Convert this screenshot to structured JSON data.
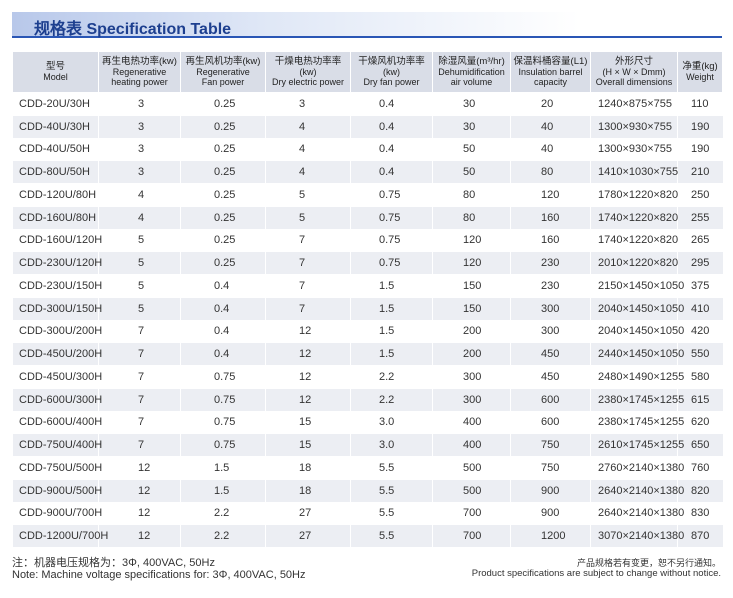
{
  "header": {
    "title": "规格表 Specification Table"
  },
  "table": {
    "columns": [
      [
        "型号",
        "Model"
      ],
      [
        "再生电热功率(kw)",
        "Regenerative",
        "heating power"
      ],
      [
        "再生风机功率(kw)",
        "Regenerative",
        "Fan power"
      ],
      [
        "干燥电热功率率",
        "(kw)",
        "Dry electric power"
      ],
      [
        "干燥风机功率率",
        "(kw)",
        "Dry fan power"
      ],
      [
        "除湿风量(m³/hr)",
        "Dehumidification",
        "air volume"
      ],
      [
        "保温料桶容量(L1)",
        "Insulation barrel",
        "capacity"
      ],
      [
        "外形尺寸",
        "(H × W × Dmm)",
        "Overall dimensions"
      ],
      [
        "净重(kg)",
        "Weight"
      ]
    ],
    "rows": [
      [
        "CDD-20U/30H",
        "3",
        "0.25",
        "3",
        "0.4",
        "30",
        "20",
        "1240×875×755",
        "110"
      ],
      [
        "CDD-40U/30H",
        "3",
        "0.25",
        "4",
        "0.4",
        "30",
        "40",
        "1300×930×755",
        "190"
      ],
      [
        "CDD-40U/50H",
        "3",
        "0.25",
        "4",
        "0.4",
        "50",
        "40",
        "1300×930×755",
        "190"
      ],
      [
        "CDD-80U/50H",
        "3",
        "0.25",
        "4",
        "0.4",
        "50",
        "80",
        "1410×1030×755",
        "210"
      ],
      [
        "CDD-120U/80H",
        "4",
        "0.25",
        "5",
        "0.75",
        "80",
        "120",
        "1780×1220×820",
        "250"
      ],
      [
        "CDD-160U/80H",
        "4",
        "0.25",
        "5",
        "0.75",
        "80",
        "160",
        "1740×1220×820",
        "255"
      ],
      [
        "CDD-160U/120H",
        "5",
        "0.25",
        "7",
        "0.75",
        "120",
        "160",
        "1740×1220×820",
        "265"
      ],
      [
        "CDD-230U/120H",
        "5",
        "0.25",
        "7",
        "0.75",
        "120",
        "230",
        "2010×1220×820",
        "295"
      ],
      [
        "CDD-230U/150H",
        "5",
        "0.4",
        "7",
        "1.5",
        "150",
        "230",
        "2150×1450×1050",
        "375"
      ],
      [
        "CDD-300U/150H",
        "5",
        "0.4",
        "7",
        "1.5",
        "150",
        "300",
        "2040×1450×1050",
        "410"
      ],
      [
        "CDD-300U/200H",
        "7",
        "0.4",
        "12",
        "1.5",
        "200",
        "300",
        "2040×1450×1050",
        "420"
      ],
      [
        "CDD-450U/200H",
        "7",
        "0.4",
        "12",
        "1.5",
        "200",
        "450",
        "2440×1450×1050",
        "550"
      ],
      [
        "CDD-450U/300H",
        "7",
        "0.75",
        "12",
        "2.2",
        "300",
        "450",
        "2480×1490×1255",
        "580"
      ],
      [
        "CDD-600U/300H",
        "7",
        "0.75",
        "12",
        "2.2",
        "300",
        "600",
        "2380×1745×1255",
        "615"
      ],
      [
        "CDD-600U/400H",
        "7",
        "0.75",
        "15",
        "3.0",
        "400",
        "600",
        "2380×1745×1255",
        "620"
      ],
      [
        "CDD-750U/400H",
        "7",
        "0.75",
        "15",
        "3.0",
        "400",
        "750",
        "2610×1745×1255",
        "650"
      ],
      [
        "CDD-750U/500H",
        "12",
        "1.5",
        "18",
        "5.5",
        "500",
        "750",
        "2760×2140×1380",
        "760"
      ],
      [
        "CDD-900U/500H",
        "12",
        "1.5",
        "18",
        "5.5",
        "500",
        "900",
        "2640×2140×1380",
        "820"
      ],
      [
        "CDD-900U/700H",
        "12",
        "2.2",
        "27",
        "5.5",
        "700",
        "900",
        "2640×2140×1380",
        "830"
      ],
      [
        "CDD-1200U/700H",
        "12",
        "2.2",
        "27",
        "5.5",
        "700",
        "1200",
        "3070×2140×1380",
        "870"
      ]
    ]
  },
  "footer": {
    "note_cn": "注：机器电压规格为：3Φ, 400VAC, 50Hz",
    "note_en": "Note: Machine voltage specifications for: 3Φ, 400VAC, 50Hz",
    "disclaimer_cn": "产品规格若有变更，恕不另行通知。",
    "disclaimer_en": "Product specifications are subject to change without notice."
  }
}
